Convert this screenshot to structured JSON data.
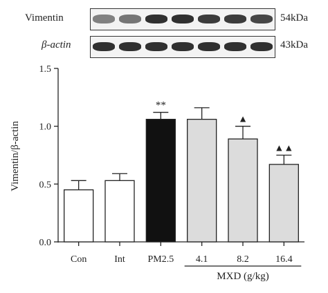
{
  "blots": [
    {
      "label": "Vimentin",
      "size_label": "54kDa",
      "band_intensity": [
        0.55,
        0.6,
        0.9,
        0.9,
        0.85,
        0.85,
        0.8
      ]
    },
    {
      "label": "β-actin",
      "size_label": "43kDa",
      "band_intensity": [
        0.9,
        0.9,
        0.9,
        0.9,
        0.9,
        0.9,
        0.9
      ]
    }
  ],
  "chart_data": {
    "type": "bar",
    "categories": [
      "Con",
      "Int",
      "PM2.5",
      "4.1",
      "8.2",
      "16.4"
    ],
    "values": [
      0.45,
      0.53,
      1.06,
      1.06,
      0.89,
      0.67
    ],
    "errors": [
      0.08,
      0.06,
      0.06,
      0.1,
      0.11,
      0.08
    ],
    "bar_colors": [
      "#ffffff",
      "#ffffff",
      "#111111",
      "#dcdcdc",
      "#dcdcdc",
      "#dcdcdc"
    ],
    "significance": [
      "",
      "",
      "**",
      "",
      "▲",
      "▲▲"
    ],
    "ylabel": "Vimentin/β-actin",
    "ylim": [
      0,
      1.5
    ],
    "yticks": [
      "0.0",
      "0.5",
      "1.0",
      "1.5"
    ],
    "group_label": "MXD (g/kg)",
    "group_span": [
      "4.1",
      "16.4"
    ],
    "grid": false
  }
}
